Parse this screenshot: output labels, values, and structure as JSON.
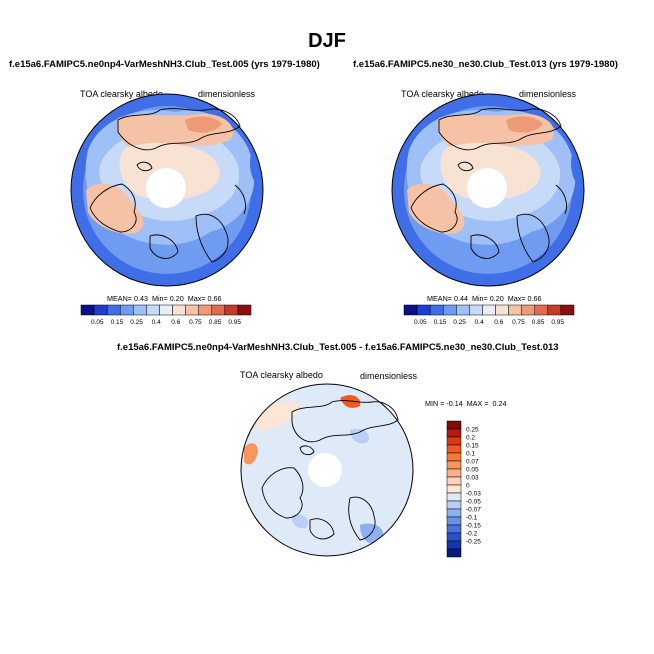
{
  "figure": {
    "season": "DJF",
    "colors": {
      "land_outline": "#000000",
      "polar_blank": "#ffffff"
    }
  },
  "panels": [
    {
      "title": "f.e15a6.FAMIPC5.ne0np4-VarMeshNH3.Club_Test.005 (yrs 1979-1980)",
      "variable": "TOA clearsky albedo",
      "units": "dimensionless",
      "stats": {
        "mean_label": "MEAN=",
        "mean": "0.43",
        "min_label": "Min=",
        "min": "0.20",
        "max_label": "Max=",
        "max": "0.66"
      }
    },
    {
      "title": "f.e15a6.FAMIPC5.ne30_ne30.Club_Test.013 (yrs 1979-1980)",
      "variable": "TOA clearsky albedo",
      "units": "dimensionless",
      "stats": {
        "mean_label": "MEAN=",
        "mean": "0.44",
        "min_label": "Min=",
        "min": "0.20",
        "max_label": "Max=",
        "max": "0.66"
      }
    },
    {
      "title": "f.e15a6.FAMIPC5.ne0np4-VarMeshNH3.Club_Test.005 - f.e15a6.FAMIPC5.ne30_ne30.Club_Test.013",
      "variable": "TOA clearsky albedo",
      "units": "dimensionless",
      "stats": {
        "min_label": "MIN =",
        "min": "-0.14",
        "max_label": "MAX =",
        "max": "0.24"
      }
    }
  ],
  "chart_data": [
    {
      "type": "heatmap",
      "title": "f.e15a6.FAMIPC5.ne0np4-VarMeshNH3.Club_Test.005 (yrs 1979-1980)",
      "variable": "TOA clearsky albedo",
      "units": "dimensionless",
      "projection": "north polar stereographic",
      "colorbar": {
        "orientation": "horizontal",
        "levels": [
          "0.05",
          "0.15",
          "0.25",
          "0.4",
          "0.6",
          "0.75",
          "0.85",
          "0.95"
        ],
        "colors": [
          "#08108a",
          "#1d3ed0",
          "#3f6ee6",
          "#6f9cf0",
          "#9ec0f7",
          "#c7daf8",
          "#e8eef6",
          "#f7e2d4",
          "#f5c2a5",
          "#ee9978",
          "#e06a4e",
          "#c73a2c",
          "#8a1010"
        ]
      },
      "stats": {
        "mean": 0.43,
        "min": 0.2,
        "max": 0.66
      }
    },
    {
      "type": "heatmap",
      "title": "f.e15a6.FAMIPC5.ne30_ne30.Club_Test.013 (yrs 1979-1980)",
      "variable": "TOA clearsky albedo",
      "units": "dimensionless",
      "projection": "north polar stereographic",
      "colorbar": {
        "orientation": "horizontal",
        "levels": [
          "0.05",
          "0.15",
          "0.25",
          "0.4",
          "0.6",
          "0.75",
          "0.85",
          "0.95"
        ],
        "colors": [
          "#08108a",
          "#1d3ed0",
          "#3f6ee6",
          "#6f9cf0",
          "#9ec0f7",
          "#c7daf8",
          "#e8eef6",
          "#f7e2d4",
          "#f5c2a5",
          "#ee9978",
          "#e06a4e",
          "#c73a2c",
          "#8a1010"
        ]
      },
      "stats": {
        "mean": 0.44,
        "min": 0.2,
        "max": 0.66
      }
    },
    {
      "type": "heatmap",
      "title": "f.e15a6.FAMIPC5.ne0np4-VarMeshNH3.Club_Test.005 - f.e15a6.FAMIPC5.ne30_ne30.Club_Test.013",
      "variable": "TOA clearsky albedo",
      "units": "dimensionless",
      "projection": "north polar stereographic",
      "colorbar": {
        "orientation": "vertical",
        "levels": [
          "0.25",
          "0.2",
          "0.15",
          "0.1",
          "0.07",
          "0.05",
          "0.03",
          "0",
          "-0.03",
          "-0.05",
          "-0.07",
          "-0.1",
          "-0.15",
          "-0.2",
          "-0.25"
        ],
        "colors": [
          "#7f0a0a",
          "#b31a10",
          "#d93a14",
          "#ee5a22",
          "#f57a3a",
          "#f89660",
          "#fab08a",
          "#fcd2bc",
          "#fbe6d8",
          "#dfeaf9",
          "#b9d0f6",
          "#8fb0f0",
          "#6c90e8",
          "#4a70de",
          "#2a50cc",
          "#1535ad",
          "#081a7d"
        ]
      },
      "stats": {
        "min": -0.14,
        "max": 0.24
      }
    }
  ]
}
